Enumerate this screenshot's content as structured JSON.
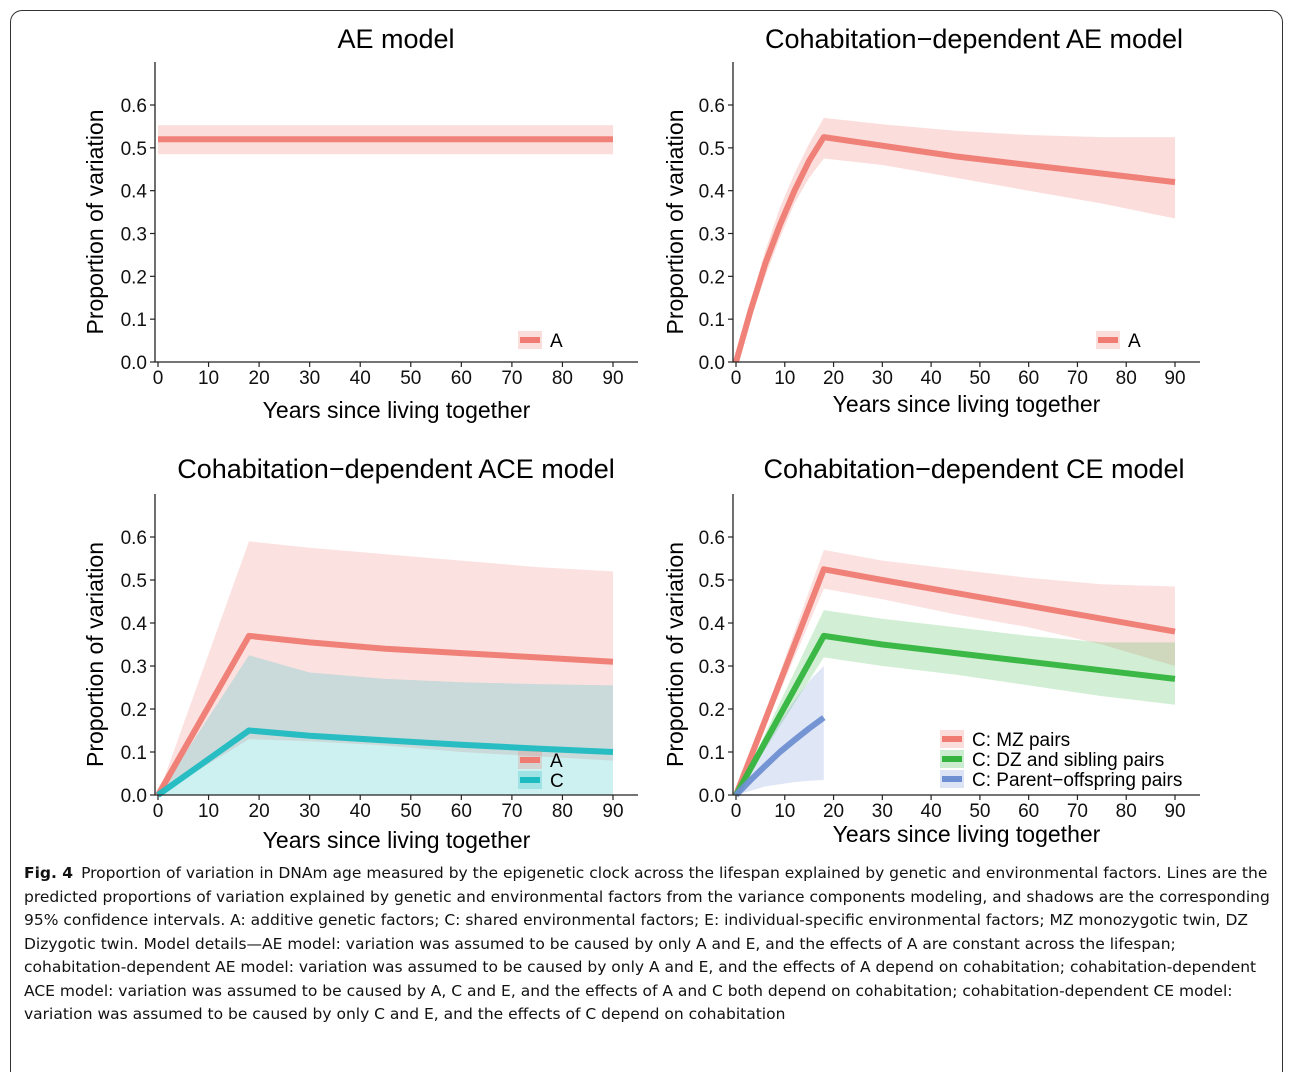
{
  "chart_data": [
    {
      "type": "line",
      "title": "AE model",
      "xlabel": "Years since living together",
      "ylabel": "Proportion of variation",
      "xlim": [
        0,
        90
      ],
      "ylim": [
        0,
        0.6
      ],
      "xticks": [
        "0",
        "10",
        "20",
        "30",
        "40",
        "50",
        "60",
        "70",
        "80",
        "90"
      ],
      "yticks": [
        "0.0",
        "0.1",
        "0.2",
        "0.3",
        "0.4",
        "0.5",
        "0.6"
      ],
      "grid": false,
      "legend_position": "bottom-right",
      "series": [
        {
          "name": "A",
          "color": "#ef7b73",
          "x": [
            0,
            90
          ],
          "y": [
            0.52,
            0.52
          ],
          "lower": [
            0.485,
            0.485
          ],
          "upper": [
            0.553,
            0.553
          ]
        }
      ]
    },
    {
      "type": "line",
      "title": "Cohabitation−dependent AE model",
      "xlabel": "Years since living together",
      "ylabel": "Proportion of variation",
      "xlim": [
        0,
        90
      ],
      "ylim": [
        0,
        0.6
      ],
      "xticks": [
        "0",
        "10",
        "20",
        "30",
        "40",
        "50",
        "60",
        "70",
        "80",
        "90"
      ],
      "yticks": [
        "0.0",
        "0.1",
        "0.2",
        "0.3",
        "0.4",
        "0.5",
        "0.6"
      ],
      "grid": false,
      "legend_position": "bottom-right",
      "series": [
        {
          "name": "A",
          "color": "#ef7b73",
          "x": [
            0,
            3,
            6,
            9,
            12,
            15,
            18,
            30,
            45,
            60,
            75,
            90
          ],
          "y": [
            0.0,
            0.12,
            0.23,
            0.32,
            0.4,
            0.47,
            0.525,
            0.505,
            0.48,
            0.46,
            0.44,
            0.42
          ],
          "lower": [
            0.0,
            0.1,
            0.2,
            0.29,
            0.37,
            0.43,
            0.475,
            0.46,
            0.43,
            0.4,
            0.37,
            0.335
          ],
          "upper": [
            0.0,
            0.14,
            0.26,
            0.36,
            0.44,
            0.51,
            0.57,
            0.555,
            0.54,
            0.53,
            0.525,
            0.525
          ]
        }
      ]
    },
    {
      "type": "line",
      "title": "Cohabitation−dependent ACE model",
      "xlabel": "Years since living together",
      "ylabel": "Proportion of variation",
      "xlim": [
        0,
        90
      ],
      "ylim": [
        0,
        0.6
      ],
      "xticks": [
        "0",
        "10",
        "20",
        "30",
        "40",
        "50",
        "60",
        "70",
        "80",
        "90"
      ],
      "yticks": [
        "0.0",
        "0.1",
        "0.2",
        "0.3",
        "0.4",
        "0.5",
        "0.6"
      ],
      "grid": false,
      "legend_position": "bottom-right",
      "series": [
        {
          "name": "A",
          "color": "#ef7b73",
          "x": [
            0,
            18,
            30,
            45,
            60,
            75,
            90
          ],
          "y": [
            0.0,
            0.37,
            0.355,
            0.34,
            0.33,
            0.32,
            0.31
          ],
          "lower": [
            0.0,
            0.13,
            0.125,
            0.115,
            0.1,
            0.09,
            0.08
          ],
          "upper": [
            0.0,
            0.59,
            0.575,
            0.56,
            0.545,
            0.53,
            0.52
          ]
        },
        {
          "name": "C",
          "color": "#1dbcc1",
          "x": [
            0,
            18,
            30,
            45,
            60,
            75,
            90
          ],
          "y": [
            0.0,
            0.15,
            0.138,
            0.127,
            0.117,
            0.108,
            0.1
          ],
          "lower": [
            0.0,
            0.0,
            0.0,
            0.0,
            0.0,
            0.0,
            0.0
          ],
          "upper": [
            0.0,
            0.325,
            0.285,
            0.27,
            0.262,
            0.258,
            0.255
          ]
        }
      ]
    },
    {
      "type": "line",
      "title": "Cohabitation−dependent CE model",
      "xlabel": "Years since living together",
      "ylabel": "Proportion of variation",
      "xlim": [
        0,
        90
      ],
      "ylim": [
        0,
        0.6
      ],
      "xticks": [
        "0",
        "10",
        "20",
        "30",
        "40",
        "50",
        "60",
        "70",
        "80",
        "90"
      ],
      "yticks": [
        "0.0",
        "0.1",
        "0.2",
        "0.3",
        "0.4",
        "0.5",
        "0.6"
      ],
      "grid": false,
      "legend_position": "bottom-right",
      "series": [
        {
          "name": "C: MZ pairs",
          "color": "#ef7b73",
          "x": [
            0,
            18,
            30,
            45,
            60,
            75,
            90
          ],
          "y": [
            0.0,
            0.525,
            0.5,
            0.47,
            0.44,
            0.41,
            0.38
          ],
          "lower": [
            0.0,
            0.48,
            0.455,
            0.42,
            0.39,
            0.35,
            0.3
          ],
          "upper": [
            0.0,
            0.57,
            0.545,
            0.525,
            0.505,
            0.49,
            0.485
          ]
        },
        {
          "name": "C: DZ and sibling pairs",
          "color": "#34b43e",
          "x": [
            0,
            18,
            30,
            45,
            60,
            75,
            90
          ],
          "y": [
            0.0,
            0.37,
            0.35,
            0.33,
            0.31,
            0.29,
            0.27
          ],
          "lower": [
            0.0,
            0.32,
            0.3,
            0.28,
            0.255,
            0.23,
            0.21
          ],
          "upper": [
            0.0,
            0.43,
            0.41,
            0.39,
            0.37,
            0.355,
            0.355
          ]
        },
        {
          "name": "C: Parent−offspring pairs",
          "color": "#6e8fd2",
          "x": [
            0,
            3,
            6,
            9,
            12,
            15,
            18
          ],
          "y": [
            0.0,
            0.035,
            0.068,
            0.1,
            0.128,
            0.155,
            0.18
          ],
          "lower": [
            0.0,
            0.01,
            0.02,
            0.025,
            0.03,
            0.033,
            0.035
          ],
          "upper": [
            0.0,
            0.06,
            0.12,
            0.17,
            0.22,
            0.265,
            0.3
          ]
        }
      ]
    }
  ],
  "caption": {
    "label": "Fig. 4",
    "text": "Proportion of variation in DNAm age measured by the epigenetic clock across the lifespan explained by genetic and environmental factors. Lines are the predicted proportions of variation explained by genetic and environmental factors from the variance components modeling, and shadows are the corresponding 95% confidence intervals. A: additive genetic factors; C: shared environmental factors; E: individual-specific environmental factors; MZ monozygotic twin, DZ Dizygotic twin. Model details—AE model: variation was assumed to be caused by only A and E, and the effects of A are constant across the lifespan; cohabitation-dependent AE model: variation was assumed to be caused by only A and E, and the effects of A depend on cohabitation; cohabitation-dependent ACE model: variation was assumed to be caused by A, C and E, and the effects of A and C both depend on cohabitation; cohabitation-dependent CE model: variation was assumed to be caused by only C and E, and the effects of C depend on cohabitation"
  }
}
